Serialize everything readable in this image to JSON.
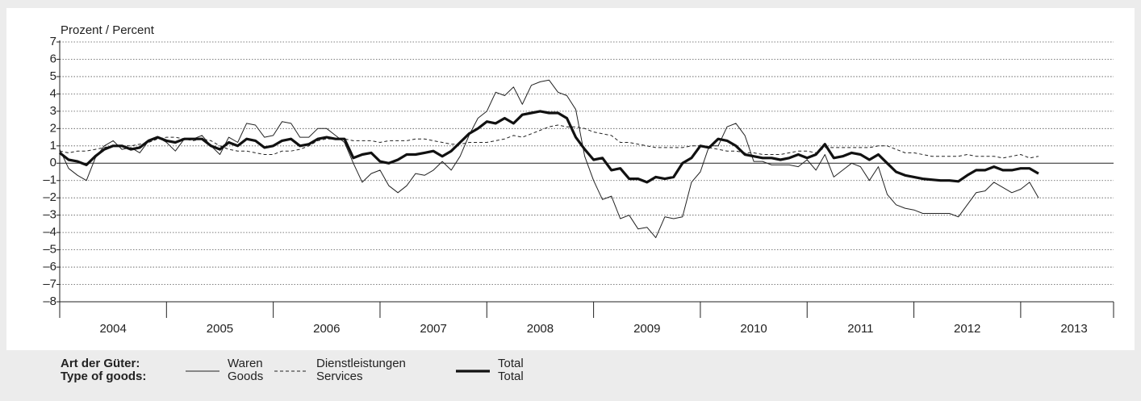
{
  "chart_data": {
    "type": "line",
    "y_label": "Prozent / Percent",
    "legend_title": [
      "Art der Güter:",
      "Type of goods:"
    ],
    "grid": true,
    "ylim": [
      -8,
      7
    ],
    "yticks": [
      {
        "value": -8,
        "label": "–8"
      },
      {
        "value": -7,
        "label": "–7"
      },
      {
        "value": -6,
        "label": "–6"
      },
      {
        "value": -5,
        "label": "–5"
      },
      {
        "value": -4,
        "label": "–4"
      },
      {
        "value": -3,
        "label": "–3"
      },
      {
        "value": -2,
        "label": "–2"
      },
      {
        "value": -1,
        "label": "–1"
      },
      0,
      1,
      2,
      3,
      4,
      5,
      6,
      7
    ],
    "xlim": [
      2004,
      2013.87
    ],
    "xticks": [
      {
        "value": 2004.5,
        "label": "2004"
      },
      {
        "value": 2005.5,
        "label": "2005"
      },
      {
        "value": 2006.5,
        "label": "2006"
      },
      {
        "value": 2007.5,
        "label": "2007"
      },
      {
        "value": 2008.5,
        "label": "2008"
      },
      {
        "value": 2009.5,
        "label": "2009"
      },
      {
        "value": 2010.5,
        "label": "2010"
      },
      {
        "value": 2011.5,
        "label": "2011"
      },
      {
        "value": 2012.5,
        "label": "2012"
      },
      {
        "value": 2013.5,
        "label": "2013"
      }
    ],
    "x": [
      2004,
      2004.083,
      2004.167,
      2004.25,
      2004.333,
      2004.417,
      2004.5,
      2004.583,
      2004.667,
      2004.75,
      2004.833,
      2004.917,
      2005,
      2005.083,
      2005.167,
      2005.25,
      2005.333,
      2005.417,
      2005.5,
      2005.583,
      2005.667,
      2005.75,
      2005.833,
      2005.917,
      2006,
      2006.083,
      2006.167,
      2006.25,
      2006.333,
      2006.417,
      2006.5,
      2006.583,
      2006.667,
      2006.75,
      2006.833,
      2006.917,
      2007,
      2007.083,
      2007.167,
      2007.25,
      2007.333,
      2007.417,
      2007.5,
      2007.583,
      2007.667,
      2007.75,
      2007.833,
      2007.917,
      2008,
      2008.083,
      2008.167,
      2008.25,
      2008.333,
      2008.417,
      2008.5,
      2008.583,
      2008.667,
      2008.75,
      2008.833,
      2008.917,
      2009,
      2009.083,
      2009.167,
      2009.25,
      2009.333,
      2009.417,
      2009.5,
      2009.583,
      2009.667,
      2009.75,
      2009.833,
      2009.917,
      2010,
      2010.083,
      2010.167,
      2010.25,
      2010.333,
      2010.417,
      2010.5,
      2010.583,
      2010.667,
      2010.75,
      2010.833,
      2010.917,
      2011,
      2011.083,
      2011.167,
      2011.25,
      2011.333,
      2011.417,
      2011.5,
      2011.583,
      2011.667,
      2011.75,
      2011.833,
      2011.917,
      2012,
      2012.083,
      2012.167,
      2012.25,
      2012.333,
      2012.417,
      2012.5,
      2012.583,
      2012.667,
      2012.75,
      2012.833,
      2012.917,
      2013,
      2013.083,
      2013.167
    ],
    "series": [
      {
        "name": "Waren",
        "name_en": "Goods",
        "color": "#222222",
        "style": "thin",
        "values": [
          0.8,
          -0.3,
          -0.7,
          -1.0,
          0.3,
          1.0,
          1.3,
          0.8,
          0.9,
          0.6,
          1.3,
          1.5,
          1.2,
          0.7,
          1.4,
          1.4,
          1.6,
          1.0,
          0.5,
          1.5,
          1.2,
          2.3,
          2.2,
          1.5,
          1.6,
          2.4,
          2.3,
          1.5,
          1.5,
          2.0,
          2.0,
          1.6,
          1.2,
          0.0,
          -1.1,
          -0.6,
          -0.4,
          -1.3,
          -1.7,
          -1.3,
          -0.6,
          -0.7,
          -0.4,
          0.1,
          -0.4,
          0.4,
          1.6,
          2.6,
          3.0,
          4.1,
          3.9,
          4.4,
          3.4,
          4.5,
          4.7,
          4.8,
          4.1,
          3.9,
          3.1,
          0.4,
          -1.0,
          -2.1,
          -1.9,
          -3.2,
          -3.0,
          -3.8,
          -3.7,
          -4.3,
          -3.1,
          -3.2,
          -3.1,
          -1.1,
          -0.5,
          1.0,
          1.0,
          2.1,
          2.3,
          1.6,
          0.1,
          0.1,
          -0.1,
          -0.1,
          -0.1,
          -0.2,
          0.2,
          -0.4,
          0.5,
          -0.8,
          -0.4,
          0.0,
          -0.2,
          -1.0,
          -0.2,
          -1.8,
          -2.4,
          -2.6,
          -2.7,
          -2.9,
          -2.9,
          -2.9,
          -2.9,
          -3.1,
          -2.4,
          -1.7,
          -1.6,
          -1.1,
          -1.4,
          -1.7,
          -1.5,
          -1.1,
          -2.0
        ]
      },
      {
        "name": "Dienstleistungen",
        "name_en": "Services",
        "color": "#222222",
        "style": "dashed",
        "values": [
          0.7,
          0.6,
          0.7,
          0.7,
          0.8,
          0.9,
          1.0,
          1.0,
          1.0,
          1.1,
          1.2,
          1.4,
          1.5,
          1.5,
          1.4,
          1.3,
          1.4,
          1.3,
          1.0,
          0.8,
          0.7,
          0.7,
          0.6,
          0.5,
          0.5,
          0.7,
          0.7,
          0.8,
          1.0,
          1.3,
          1.4,
          1.4,
          1.4,
          1.3,
          1.3,
          1.3,
          1.2,
          1.3,
          1.3,
          1.3,
          1.4,
          1.4,
          1.3,
          1.2,
          1.1,
          1.1,
          1.2,
          1.2,
          1.2,
          1.3,
          1.4,
          1.6,
          1.5,
          1.7,
          1.9,
          2.1,
          2.2,
          2.1,
          2.1,
          2.0,
          1.8,
          1.7,
          1.6,
          1.2,
          1.2,
          1.1,
          1.0,
          0.9,
          0.9,
          0.9,
          0.9,
          1.0,
          1.0,
          0.9,
          0.8,
          0.7,
          0.7,
          0.6,
          0.6,
          0.5,
          0.5,
          0.5,
          0.6,
          0.7,
          0.7,
          0.6,
          0.9,
          0.9,
          0.9,
          0.9,
          0.9,
          0.9,
          1.0,
          1.0,
          0.8,
          0.6,
          0.6,
          0.5,
          0.4,
          0.4,
          0.4,
          0.4,
          0.5,
          0.4,
          0.4,
          0.4,
          0.3,
          0.4,
          0.5,
          0.3,
          0.4
        ]
      },
      {
        "name": "Total",
        "name_en": "Total",
        "color": "#111111",
        "style": "thick",
        "values": [
          0.6,
          0.2,
          0.1,
          -0.1,
          0.4,
          0.8,
          1.0,
          1.0,
          0.8,
          0.9,
          1.3,
          1.5,
          1.3,
          1.2,
          1.4,
          1.4,
          1.4,
          1.0,
          0.8,
          1.2,
          1.0,
          1.4,
          1.3,
          0.9,
          1.0,
          1.3,
          1.4,
          1.0,
          1.1,
          1.4,
          1.5,
          1.4,
          1.4,
          0.3,
          0.5,
          0.6,
          0.1,
          0.0,
          0.2,
          0.5,
          0.5,
          0.6,
          0.7,
          0.4,
          0.7,
          1.2,
          1.7,
          2.0,
          2.4,
          2.3,
          2.6,
          2.3,
          2.8,
          2.9,
          3.0,
          2.9,
          2.9,
          2.6,
          1.5,
          0.8,
          0.2,
          0.3,
          -0.4,
          -0.3,
          -0.9,
          -0.9,
          -1.1,
          -0.8,
          -0.9,
          -0.8,
          0.0,
          0.3,
          1.0,
          0.9,
          1.4,
          1.3,
          1.0,
          0.5,
          0.4,
          0.3,
          0.3,
          0.2,
          0.3,
          0.5,
          0.3,
          0.5,
          1.1,
          0.3,
          0.4,
          0.6,
          0.5,
          0.2,
          0.5,
          0.0,
          -0.5,
          -0.7,
          -0.8,
          -0.9,
          -0.95,
          -1.0,
          -1.0,
          -1.05,
          -0.7,
          -0.4,
          -0.4,
          -0.2,
          -0.4,
          -0.4,
          -0.3,
          -0.3,
          -0.6
        ]
      }
    ]
  }
}
